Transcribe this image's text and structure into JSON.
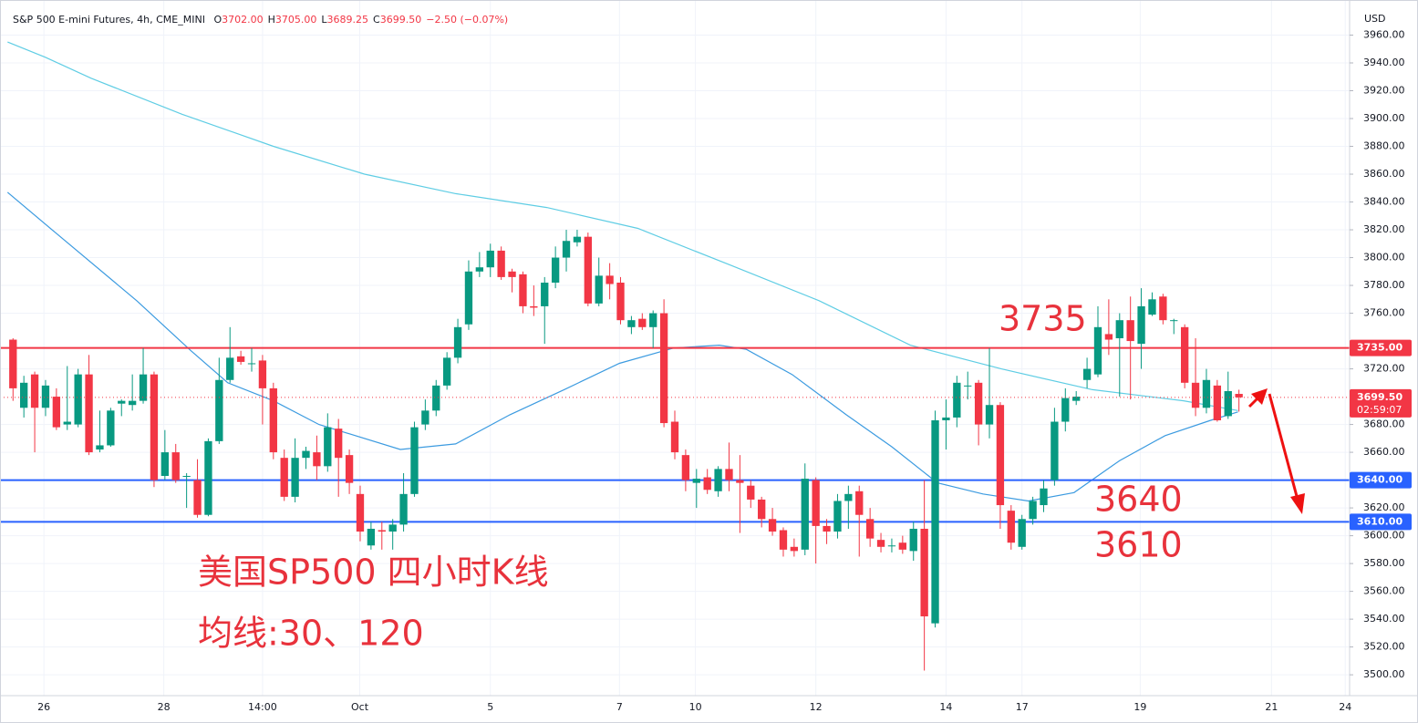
{
  "chart_data": {
    "type": "candlestick",
    "title": "S&P 500 E-mini Futures, 4h, CME_MINI",
    "header_ohlc": [
      {
        "key": "O",
        "value": "3702.00"
      },
      {
        "key": "H",
        "value": "3705.00"
      },
      {
        "key": "L",
        "value": "3689.25"
      },
      {
        "key": "C",
        "value": "3699.50"
      }
    ],
    "header_change": "−2.50 (−0.07%)",
    "currency": "USD",
    "up_color": "#089981",
    "down_color": "#f23645",
    "grid": true,
    "xlim": [
      -1.2,
      123.2
    ],
    "xticks": [
      {
        "value": 2.85,
        "label": "26"
      },
      {
        "value": 13.9,
        "label": "28"
      },
      {
        "value": 23,
        "label": "14:00"
      },
      {
        "value": 31.96,
        "label": "Oct"
      },
      {
        "value": 44,
        "label": "5"
      },
      {
        "value": 55.9,
        "label": "7"
      },
      {
        "value": 62.9,
        "label": "10"
      },
      {
        "value": 74,
        "label": "12"
      },
      {
        "value": 86,
        "label": "14"
      },
      {
        "value": 93,
        "label": "17"
      },
      {
        "value": 103.9,
        "label": "19"
      },
      {
        "value": 116,
        "label": "21"
      },
      {
        "value": 122.8,
        "label": "24"
      }
    ],
    "ylim": [
      3485,
      3980
    ],
    "yticks": [
      {
        "value": 3500,
        "label": "3500.00"
      },
      {
        "value": 3520,
        "label": "3520.00"
      },
      {
        "value": 3540,
        "label": "3540.00"
      },
      {
        "value": 3560,
        "label": "3560.00"
      },
      {
        "value": 3580,
        "label": "3580.00"
      },
      {
        "value": 3600,
        "label": "3600.00"
      },
      {
        "value": 3620,
        "label": "3620.00"
      },
      {
        "value": 3660,
        "label": "3660.00"
      },
      {
        "value": 3680,
        "label": "3680.00"
      },
      {
        "value": 3720,
        "label": "3720.00"
      },
      {
        "value": 3760,
        "label": "3760.00"
      },
      {
        "value": 3780,
        "label": "3780.00"
      },
      {
        "value": 3800,
        "label": "3800.00"
      },
      {
        "value": 3820,
        "label": "3820.00"
      },
      {
        "value": 3840,
        "label": "3840.00"
      },
      {
        "value": 3860,
        "label": "3860.00"
      },
      {
        "value": 3880,
        "label": "3880.00"
      },
      {
        "value": 3900,
        "label": "3900.00"
      },
      {
        "value": 3920,
        "label": "3920.00"
      },
      {
        "value": 3940,
        "label": "3940.00"
      },
      {
        "value": 3960,
        "label": "3960.00"
      }
    ],
    "open": [
      3741,
      3692,
      3716,
      3692,
      3700,
      3680,
      3680,
      3716,
      3662,
      3665,
      3695,
      3694,
      3697,
      3716,
      3643,
      3660,
      3643,
      3640,
      3615,
      3668,
      3712,
      3729,
      3724,
      3726,
      3706,
      3656,
      3628,
      3656,
      3660,
      3650,
      3677,
      3658,
      3630,
      3593,
      3604,
      3603,
      3608,
      3630,
      3680,
      3690,
      3708,
      3728,
      3752,
      3790,
      3793,
      3805,
      3790,
      3788,
      3765,
      3765,
      3782,
      3800,
      3811,
      3815,
      3767,
      3787,
      3782,
      3750,
      3756,
      3750,
      3760,
      3682,
      3658,
      3638,
      3642,
      3632,
      3648,
      3640,
      3636,
      3626,
      3612,
      3604,
      3592,
      3590,
      3640,
      3607,
      3603,
      3625,
      3632,
      3612,
      3597,
      3593,
      3595,
      3589,
      3605,
      3537,
      3683,
      3685,
      3708,
      3710,
      3680,
      3694,
      3618,
      3592,
      3612,
      3622,
      3640,
      3682,
      3697,
      3712,
      3716,
      3745,
      3742,
      3755,
      3738,
      3759,
      3772,
      3755,
      3750,
      3710,
      3692,
      3708,
      3686,
      3702
    ],
    "high": [
      3742,
      3715,
      3718,
      3712,
      3706,
      3722,
      3720,
      3730,
      3690,
      3692,
      3698,
      3716,
      3735,
      3718,
      3676,
      3666,
      3645,
      3655,
      3670,
      3728,
      3750,
      3733,
      3735,
      3730,
      3710,
      3662,
      3670,
      3664,
      3672,
      3688,
      3684,
      3662,
      3636,
      3610,
      3610,
      3612,
      3645,
      3682,
      3698,
      3712,
      3732,
      3756,
      3798,
      3804,
      3810,
      3808,
      3792,
      3790,
      3780,
      3786,
      3808,
      3820,
      3820,
      3818,
      3800,
      3796,
      3786,
      3758,
      3760,
      3762,
      3770,
      3690,
      3662,
      3648,
      3648,
      3650,
      3667,
      3658,
      3640,
      3628,
      3620,
      3606,
      3598,
      3652,
      3642,
      3612,
      3630,
      3636,
      3636,
      3620,
      3602,
      3598,
      3600,
      3610,
      3640,
      3690,
      3698,
      3715,
      3718,
      3712,
      3735,
      3696,
      3622,
      3615,
      3628,
      3640,
      3692,
      3706,
      3704,
      3728,
      3765,
      3770,
      3760,
      3772,
      3778,
      3775,
      3774,
      3756,
      3752,
      3742,
      3720,
      3712,
      3718,
      3705
    ],
    "low": [
      3697,
      3685,
      3660,
      3686,
      3676,
      3676,
      3678,
      3658,
      3660,
      3664,
      3686,
      3690,
      3695,
      3635,
      3640,
      3638,
      3620,
      3613,
      3614,
      3666,
      3710,
      3723,
      3718,
      3680,
      3655,
      3625,
      3624,
      3648,
      3640,
      3646,
      3628,
      3630,
      3596,
      3590,
      3590,
      3590,
      3603,
      3628,
      3676,
      3686,
      3705,
      3724,
      3748,
      3786,
      3786,
      3784,
      3775,
      3760,
      3758,
      3738,
      3778,
      3790,
      3808,
      3765,
      3765,
      3770,
      3752,
      3745,
      3748,
      3735,
      3678,
      3655,
      3632,
      3620,
      3630,
      3628,
      3632,
      3602,
      3620,
      3606,
      3600,
      3585,
      3585,
      3586,
      3580,
      3594,
      3598,
      3605,
      3585,
      3592,
      3588,
      3588,
      3587,
      3582,
      3503,
      3534,
      3662,
      3678,
      3698,
      3665,
      3670,
      3605,
      3590,
      3590,
      3608,
      3617,
      3636,
      3675,
      3694,
      3706,
      3714,
      3730,
      3700,
      3698,
      3720,
      3758,
      3752,
      3745,
      3706,
      3686,
      3688,
      3682,
      3684,
      3689.25
    ],
    "close": [
      3706,
      3710,
      3692,
      3708,
      3678,
      3682,
      3716,
      3660,
      3665,
      3690,
      3697,
      3697,
      3716,
      3640,
      3660,
      3640,
      3643,
      3615,
      3668,
      3712,
      3728,
      3725,
      3724,
      3706,
      3660,
      3628,
      3656,
      3661,
      3650,
      3678,
      3656,
      3638,
      3603,
      3605,
      3603,
      3608,
      3630,
      3678,
      3690,
      3708,
      3728,
      3750,
      3790,
      3793,
      3805,
      3786,
      3786,
      3765,
      3764,
      3782,
      3800,
      3812,
      3815,
      3767,
      3787,
      3781,
      3755,
      3755,
      3750,
      3760,
      3681,
      3660,
      3640,
      3641,
      3633,
      3648,
      3640,
      3638,
      3626,
      3612,
      3603,
      3590,
      3589,
      3641,
      3607,
      3603,
      3625,
      3630,
      3615,
      3598,
      3592,
      3593,
      3590,
      3605,
      3542,
      3683,
      3685,
      3710,
      3708,
      3680,
      3694,
      3622,
      3595,
      3612,
      3625,
      3634,
      3682,
      3699,
      3700,
      3720,
      3750,
      3741,
      3755,
      3740,
      3765,
      3770,
      3755,
      3755,
      3710,
      3692,
      3712,
      3683,
      3704,
      3699.5
    ],
    "ma_lines": [
      {
        "color": "#5fcde4",
        "x": [
          -0.5,
          3.0,
          7.2,
          15.6,
          24.0,
          32.4,
          40.8,
          49.2,
          57.6,
          66.0,
          74.3,
          82.7,
          91.1,
          99.5,
          107.9,
          112.9
        ],
        "values": [
          3955,
          3944,
          3929,
          3903,
          3880,
          3860,
          3846,
          3836,
          3821,
          3795,
          3769,
          3737,
          3720,
          3705,
          3697,
          3690
        ]
      },
      {
        "color": "#3c9be0",
        "x": [
          -0.5,
          3.9,
          11.4,
          16.4,
          19.8,
          24.0,
          28.2,
          35.7,
          40.8,
          45.8,
          50.8,
          55.9,
          60.9,
          65.1,
          67.6,
          71.8,
          76.8,
          81.0,
          85.2,
          89.4,
          93.6,
          97.8,
          102.0,
          106.2,
          110.4,
          112.9
        ],
        "values": [
          3847,
          3818,
          3769,
          3733,
          3710,
          3697,
          3680,
          3662,
          3666,
          3687,
          3705,
          3724,
          3735,
          3737,
          3734,
          3716,
          3687,
          3664,
          3638,
          3630,
          3625,
          3631,
          3654,
          3672,
          3683,
          3689
        ]
      }
    ],
    "levels": [
      {
        "value": 3735,
        "label": "3735.00",
        "color": "#f23645"
      },
      {
        "value": 3640,
        "label": "3640.00",
        "color": "#2962ff"
      },
      {
        "value": 3610,
        "label": "3610.00",
        "color": "#2962ff"
      }
    ],
    "price_tag": {
      "value": 3699.5,
      "label": "3699.50",
      "countdown": "02:59:07",
      "color": "#f23645"
    },
    "annotations": [
      {
        "text": "3735"
      },
      {
        "text": "3640"
      },
      {
        "text": "3610"
      },
      {
        "text": "美国SP500 四小时K线"
      },
      {
        "text": "均线:30、120"
      }
    ]
  }
}
